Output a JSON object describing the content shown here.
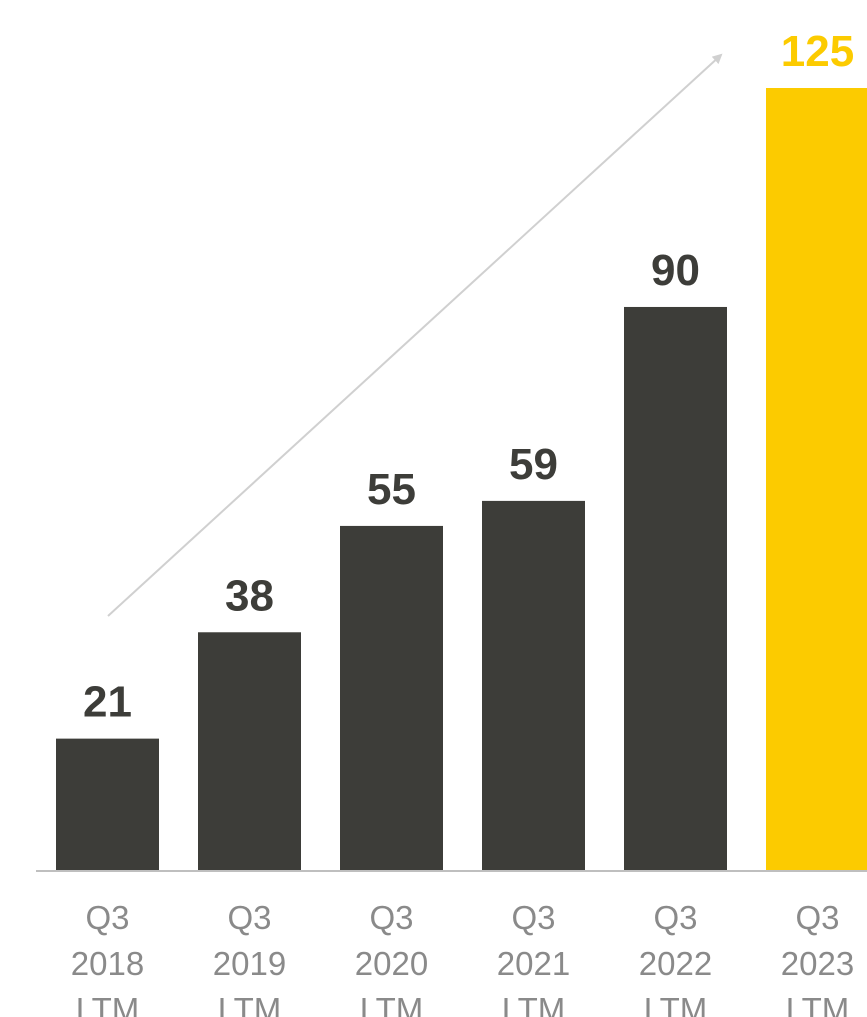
{
  "chart_data": {
    "type": "bar",
    "title": "",
    "xlabel": "",
    "ylabel": "",
    "categories": [
      [
        "Q3",
        "2018",
        "LTM"
      ],
      [
        "Q3",
        "2019",
        "LTM"
      ],
      [
        "Q3",
        "2020",
        "LTM"
      ],
      [
        "Q3",
        "2021",
        "LTM"
      ],
      [
        "Q3",
        "2022",
        "LTM"
      ],
      [
        "Q3",
        "2023",
        "LTM"
      ]
    ],
    "values": [
      21,
      38,
      55,
      59,
      90,
      125
    ],
    "data_labels": [
      "21",
      "38",
      "55",
      "59",
      "90",
      "125"
    ],
    "ylim": [
      0,
      125
    ],
    "grid": false,
    "legend": "none",
    "trend_arrow": true,
    "colors": {
      "bar": "#3d3d39",
      "highlight_bar": "#fccb00",
      "label": "#3d3d39",
      "highlight_label": "#fccb00",
      "axis": "#bfbfbf",
      "tick_text": "#8a8a8a",
      "arrow": "#d0d0d0"
    },
    "highlight_index": 5
  }
}
